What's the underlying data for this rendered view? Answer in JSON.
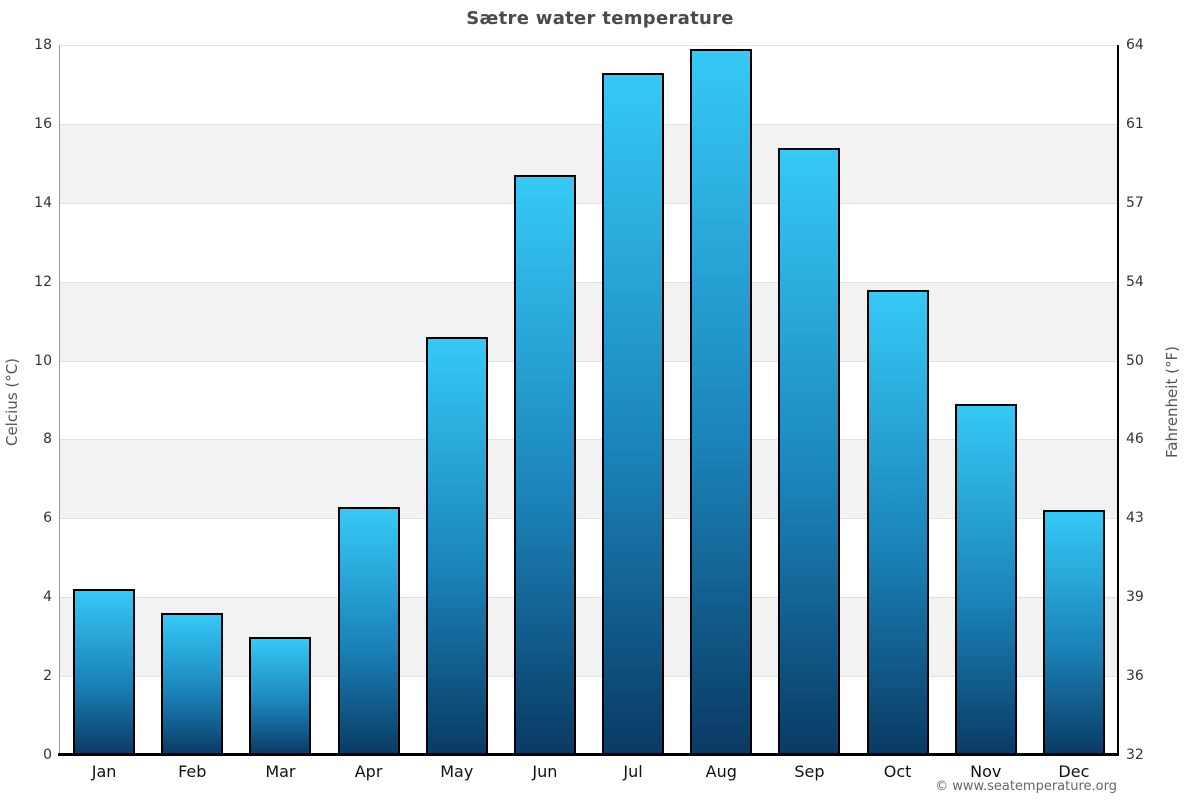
{
  "title": "Sætre water temperature",
  "footer": "© www.seatemperature.org",
  "chart_data": {
    "type": "bar",
    "title": "Sætre water temperature",
    "categories": [
      "Jan",
      "Feb",
      "Mar",
      "Apr",
      "May",
      "Jun",
      "Jul",
      "Aug",
      "Sep",
      "Oct",
      "Nov",
      "Dec"
    ],
    "series": [
      {
        "name": "Water temperature (°C)",
        "values": [
          4.2,
          3.6,
          3.0,
          6.3,
          10.6,
          14.7,
          17.3,
          17.9,
          15.4,
          11.8,
          8.9,
          6.2
        ]
      }
    ],
    "ylim": [
      0,
      18
    ],
    "grid": true,
    "legend_position": "none",
    "y_axis_left": {
      "label": "Celcius (°C)",
      "ticks": [
        0,
        2,
        4,
        6,
        8,
        10,
        12,
        14,
        16,
        18
      ]
    },
    "y_axis_right": {
      "label": "Fahrenheit (°F)",
      "ticks": [
        32,
        36,
        39,
        43,
        46,
        50,
        54,
        57,
        61,
        64
      ]
    },
    "shaded_bands_celsius": [
      [
        2,
        4
      ],
      [
        6,
        8
      ],
      [
        10,
        12
      ],
      [
        14,
        16
      ]
    ],
    "colors": {
      "bar_gradient_top": "#36c9f6",
      "bar_gradient_bottom": "#0a3a64",
      "bar_border": "#000000",
      "band_fill": "#f2f2f2",
      "gridline": "#e1e1e1",
      "axis_left_spine": "#9a9a9a",
      "axis_right_spine": "#000000",
      "baseline": "#000000",
      "title_text": "#4a4a4a",
      "tick_text": "#333333",
      "footer_text": "#666666"
    }
  }
}
